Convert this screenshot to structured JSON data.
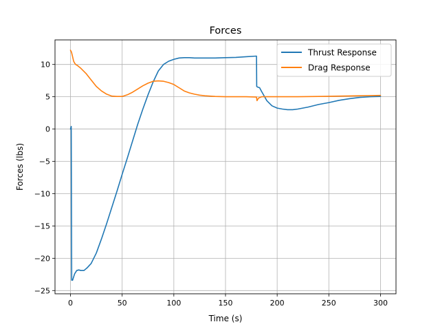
{
  "chart_data": {
    "type": "line",
    "title": "Forces",
    "xlabel": "Time (s)",
    "ylabel": "Forces (lbs)",
    "xlim": [
      -15,
      315
    ],
    "ylim": [
      -25.5,
      13.8
    ],
    "xticks": [
      0,
      50,
      100,
      150,
      200,
      250,
      300
    ],
    "yticks": [
      -25,
      -20,
      -15,
      -10,
      -5,
      0,
      5,
      10
    ],
    "grid": true,
    "legend_position": "top-right",
    "series": [
      {
        "name": "Thrust Response",
        "color": "#1f77b4",
        "x": [
          0,
          0.7,
          1.2,
          2,
          4,
          6,
          8,
          10,
          13,
          16,
          20,
          25,
          30,
          35,
          40,
          45,
          50,
          55,
          60,
          65,
          70,
          75,
          80,
          85,
          90,
          95,
          100,
          105,
          110,
          115,
          120,
          125,
          130,
          140,
          150,
          160,
          170,
          180,
          180.2,
          181,
          183,
          185,
          190,
          195,
          200,
          205,
          210,
          215,
          220,
          230,
          240,
          250,
          260,
          270,
          280,
          290,
          300
        ],
        "y": [
          0,
          0.4,
          -23.4,
          -23.4,
          -22.4,
          -21.9,
          -21.8,
          -21.9,
          -21.9,
          -21.5,
          -20.8,
          -19.2,
          -17.0,
          -14.6,
          -12.1,
          -9.6,
          -7.0,
          -4.5,
          -1.9,
          0.7,
          3.1,
          5.3,
          7.3,
          9.0,
          10.0,
          10.5,
          10.8,
          11.0,
          11.05,
          11.05,
          11.0,
          11.0,
          11.0,
          11.0,
          11.05,
          11.1,
          11.2,
          11.3,
          6.6,
          6.5,
          6.4,
          5.8,
          4.4,
          3.6,
          3.25,
          3.1,
          3.0,
          3.0,
          3.1,
          3.4,
          3.8,
          4.1,
          4.45,
          4.7,
          4.9,
          5.0,
          5.05
        ]
      },
      {
        "name": "Drag Response",
        "color": "#ff7f0e",
        "x": [
          0,
          1,
          2,
          3,
          4,
          5,
          7,
          10,
          15,
          20,
          25,
          30,
          35,
          40,
          45,
          50,
          55,
          60,
          65,
          70,
          75,
          80,
          85,
          90,
          95,
          100,
          105,
          110,
          115,
          120,
          125,
          130,
          140,
          150,
          160,
          170,
          180,
          180.5,
          182,
          185,
          190,
          200,
          210,
          220,
          240,
          260,
          280,
          300
        ],
        "y": [
          12.2,
          11.9,
          11.2,
          10.5,
          10.2,
          10.0,
          9.8,
          9.4,
          8.6,
          7.6,
          6.6,
          5.9,
          5.4,
          5.1,
          5.05,
          5.05,
          5.3,
          5.7,
          6.2,
          6.7,
          7.1,
          7.4,
          7.45,
          7.4,
          7.2,
          6.9,
          6.4,
          5.9,
          5.6,
          5.4,
          5.25,
          5.15,
          5.05,
          5.0,
          5.0,
          5.0,
          4.95,
          4.4,
          4.8,
          5.0,
          5.0,
          5.0,
          5.0,
          5.0,
          5.05,
          5.1,
          5.15,
          5.2
        ]
      }
    ]
  }
}
